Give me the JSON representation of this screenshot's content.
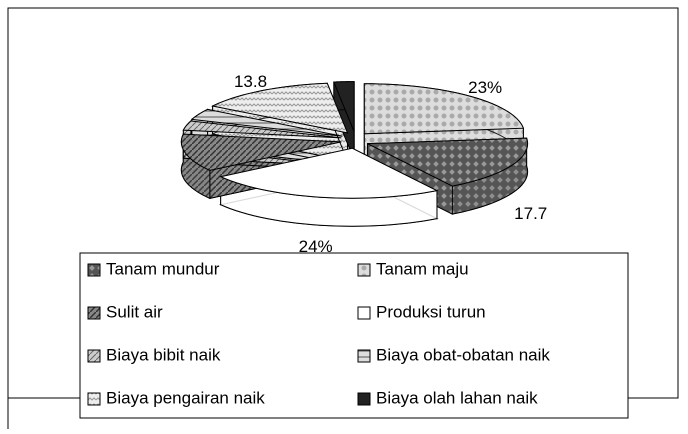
{
  "chart_data": {
    "type": "pie3d",
    "categories": [
      "Tanam mundur",
      "Tanam maju",
      "Sulit air",
      "Produksi turun",
      "Biaya bibit naik",
      "Biaya obat-obatan naik",
      "Biaya pengairan naik",
      "Biaya olah lahan naik"
    ],
    "values": [
      17.7,
      23,
      12,
      24,
      3,
      3.5,
      13.8,
      2
    ],
    "value_labels": [
      "17.7",
      "23%",
      null,
      "24%",
      null,
      null,
      "13.8",
      null
    ],
    "colors": [
      "#555555",
      "#cccccc",
      "#777777",
      "#ffffff",
      "#aaaaaa",
      "#bbbbbb",
      "#dddddd",
      "#222222"
    ]
  }
}
